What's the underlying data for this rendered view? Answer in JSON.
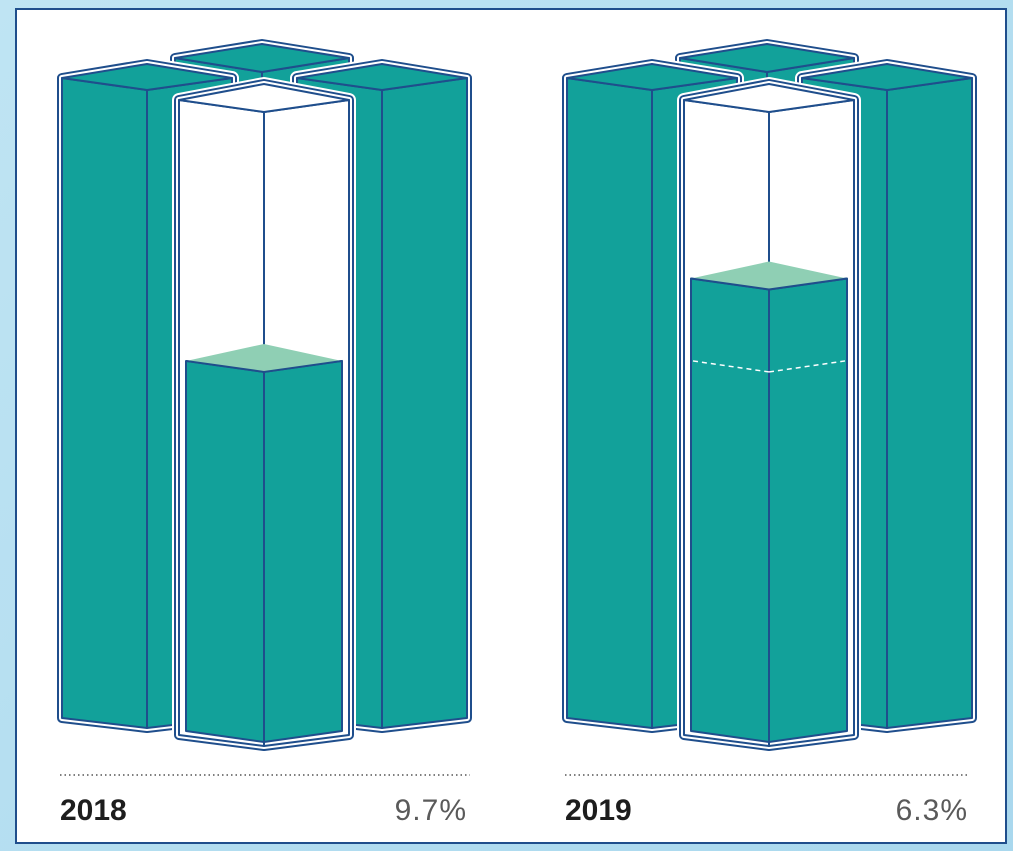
{
  "chart_data": {
    "type": "bar",
    "categories": [
      "2018",
      "2019"
    ],
    "values": [
      9.7,
      6.3
    ],
    "value_labels": [
      "9.7%",
      "6.3%"
    ],
    "unit": "%",
    "fill_fractions": [
      0.59,
      0.72
    ],
    "reference_line_fraction_2019": 0.59,
    "colors": {
      "teal": "#12a19a",
      "teal_top": "#8fcfb4",
      "outline": "#1f4e8c",
      "empty": "#ffffff"
    }
  }
}
